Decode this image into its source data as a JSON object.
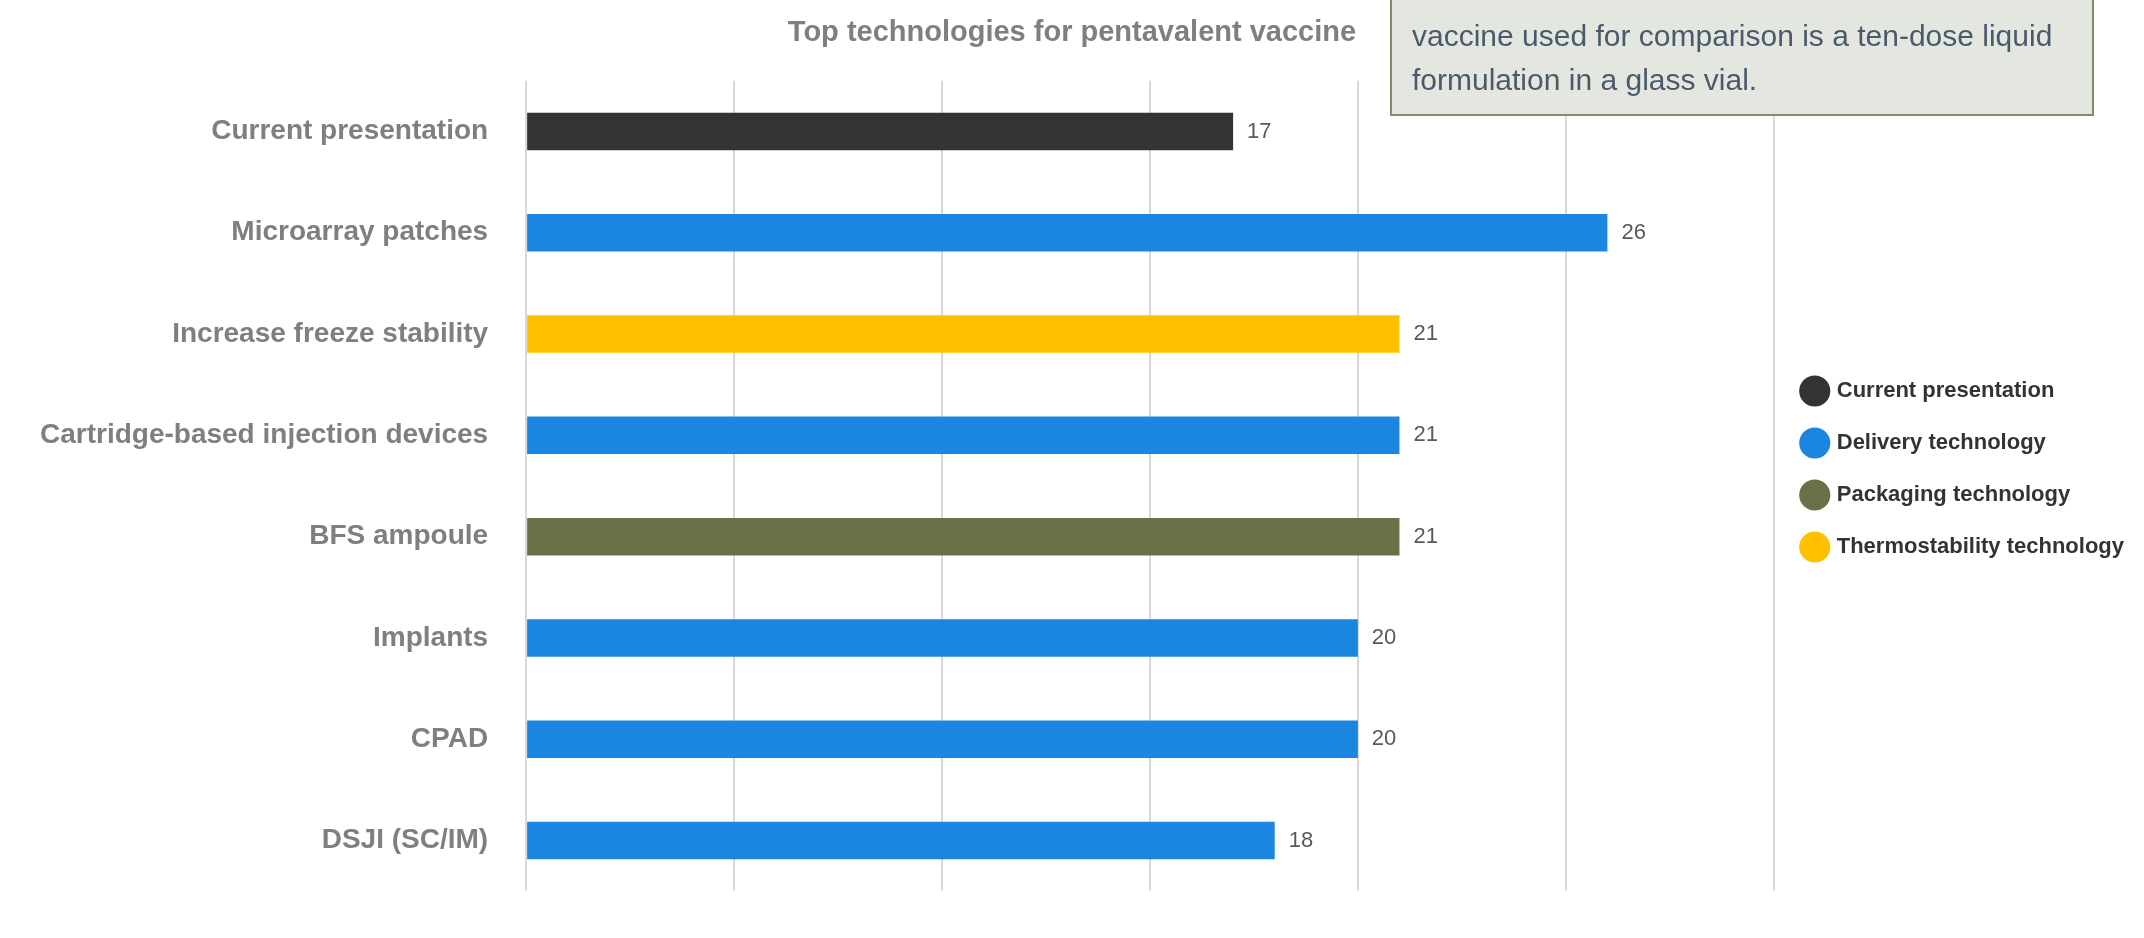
{
  "chart_data": {
    "type": "bar",
    "orientation": "horizontal",
    "title": "Top technologies for pentavalent vaccine",
    "categories": [
      "Current presentation",
      "Microarray patches",
      "Increase freeze stability",
      "Cartridge-based injection devices",
      "BFS ampoule",
      "Implants",
      "CPAD",
      "DSJI (SC/IM)"
    ],
    "series": [
      {
        "name": "Current presentation",
        "color": "#333333",
        "values": [
          17,
          null,
          null,
          null,
          null,
          null,
          null,
          null
        ]
      },
      {
        "name": "Delivery technology",
        "color": "#1a86e0",
        "values": [
          null,
          26,
          null,
          21,
          null,
          20,
          20,
          18
        ]
      },
      {
        "name": "Packaging technology",
        "color": "#6a7146",
        "values": [
          null,
          null,
          null,
          null,
          21,
          null,
          null,
          null
        ]
      },
      {
        "name": "Thermostability technology",
        "color": "#ffc000",
        "values": [
          null,
          null,
          21,
          null,
          null,
          null,
          null,
          null
        ]
      }
    ],
    "xlim": [
      0,
      30
    ],
    "xticks": [
      {
        "value": 0,
        "label": null
      },
      {
        "value": 5,
        "label": null
      },
      {
        "value": 10,
        "label": null
      },
      {
        "value": 15,
        "label": null
      },
      {
        "value": 20,
        "label": null
      },
      {
        "value": 25,
        "label": null
      },
      {
        "value": 30,
        "label": null
      }
    ],
    "tick_labels": "y",
    "grid": "x",
    "legend": "right",
    "data_labels": true,
    "annotations": [
      "vaccine used for comparison is a ten-dose liquid formulation in a glass vial."
    ]
  }
}
